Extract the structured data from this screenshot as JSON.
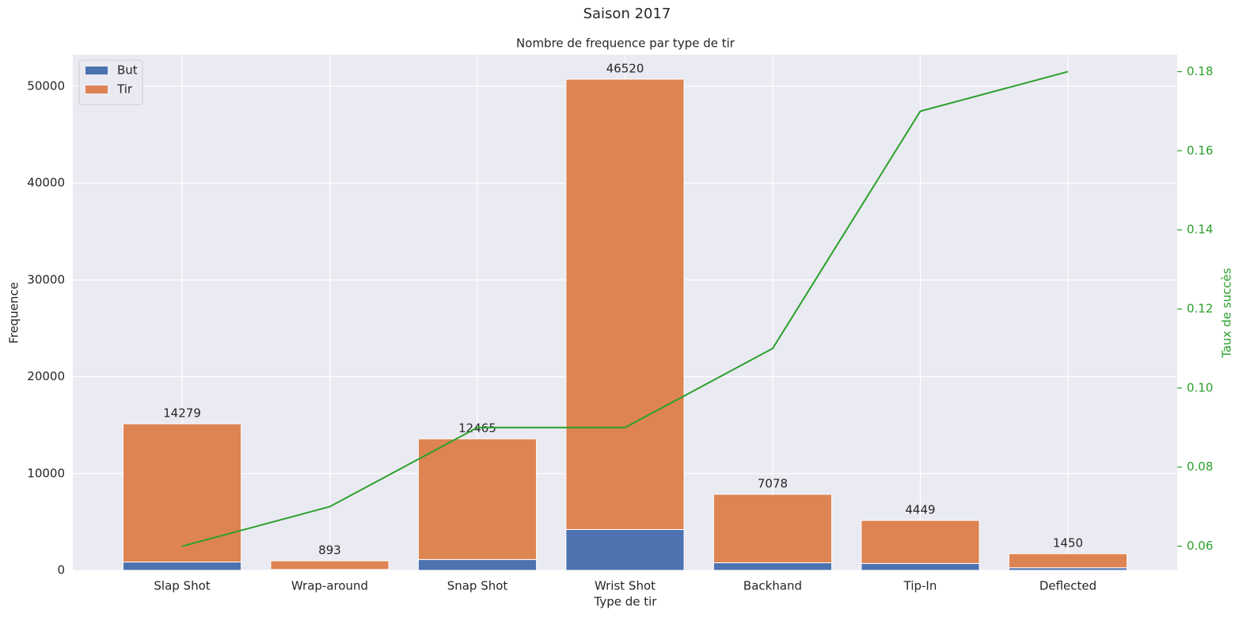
{
  "chart_data": {
    "type": "bar",
    "stacked": true,
    "title": "Saison 2017",
    "subtitle": "Nombre de frequence par type de tir",
    "xlabel": "Type de tir",
    "ylabel": "Frequence",
    "y2label": "Taux de succès",
    "categories": [
      "Slap Shot",
      "Wrap-around",
      "Snap Shot",
      "Wrist Shot",
      "Backhand",
      "Tip-In",
      "Deflected"
    ],
    "series": [
      {
        "name": "But",
        "color": "#4c72b0",
        "values": [
          860,
          89,
          1119,
          4217,
          778,
          706,
          268
        ]
      },
      {
        "name": "Tir",
        "color": "#dd8452",
        "values": [
          14279,
          893,
          12465,
          46520,
          7078,
          4449,
          1450
        ],
        "show_labels": true
      }
    ],
    "line": {
      "type": "line",
      "axis": "y2",
      "color": "#2ca02c",
      "values": [
        0.06,
        0.07,
        0.09,
        0.09,
        0.11,
        0.17,
        0.18
      ]
    },
    "ylim": [
      0,
      53270
    ],
    "yticks": [
      0,
      10000,
      20000,
      30000,
      40000,
      50000
    ],
    "y2lim": [
      0.0539,
      0.1843
    ],
    "y2ticks": [
      0.06,
      0.08,
      {
        "value": 0.1,
        "label": "0.10"
      },
      0.12,
      0.14,
      0.16,
      0.18
    ],
    "grid": true,
    "legend": "upper left"
  }
}
